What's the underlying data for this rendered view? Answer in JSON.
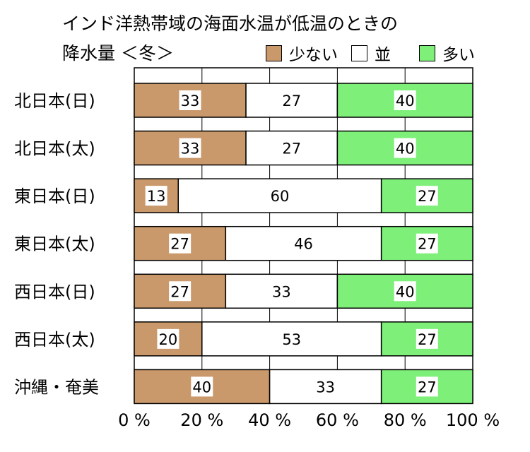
{
  "chart_data": {
    "type": "bar",
    "orientation": "horizontal",
    "stacked": true,
    "title": "インド洋熱帯域の海面水温が低温のときの",
    "subtitle": "降水量 ＜冬＞",
    "categories": [
      "北日本(日)",
      "北日本(太)",
      "東日本(日)",
      "東日本(太)",
      "西日本(日)",
      "西日本(太)",
      "沖縄・奄美"
    ],
    "series": [
      {
        "name": "少ない",
        "color": "#c9986b",
        "values": [
          33,
          33,
          13,
          27,
          27,
          20,
          40
        ]
      },
      {
        "name": "並",
        "color": "#ffffff",
        "values": [
          27,
          27,
          60,
          46,
          33,
          53,
          33
        ]
      },
      {
        "name": "多い",
        "color": "#7ef07a",
        "values": [
          40,
          40,
          27,
          27,
          40,
          27,
          27
        ]
      }
    ],
    "xlim": [
      0,
      100
    ],
    "xticks": [
      "0 %",
      "20 %",
      "40 %",
      "60 %",
      "80 %",
      "100 %"
    ],
    "grid": true,
    "legend": "top-right"
  }
}
